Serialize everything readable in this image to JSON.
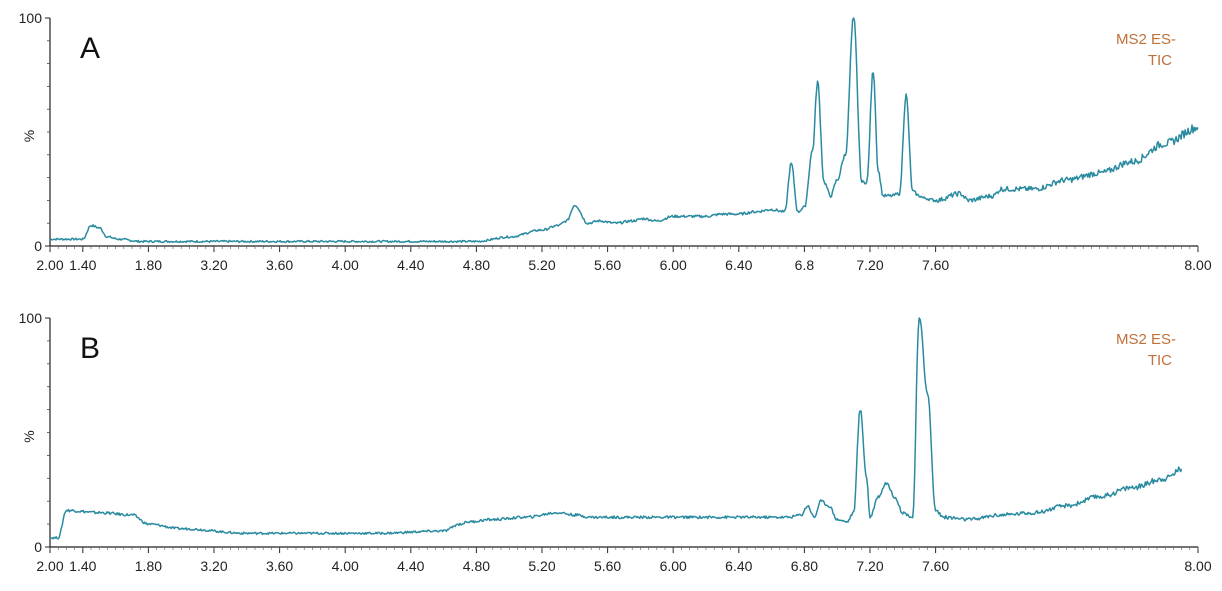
{
  "chart_data": [
    {
      "type": "line",
      "panel_label": "A",
      "annotation": [
        "MS2 ES-",
        "TIC"
      ],
      "ylabel": "%",
      "y_ticks": [
        "0",
        "100"
      ],
      "ylim": [
        0,
        100
      ],
      "x_tick_labels": [
        "2.00",
        "1.40",
        "1.80",
        "3.20",
        "3.60",
        "4.00",
        "4.40",
        "4.80",
        "5.20",
        "5.60",
        "6.00",
        "6.40",
        "6.8",
        "7.20",
        "7.60",
        "8.00"
      ],
      "xlim": [
        1.0,
        8.0
      ],
      "x_step": 0.4,
      "grid": false,
      "line_color": "#2a8ba0",
      "annotation_color": "#c0703a",
      "series": [
        {
          "x": [
            1.0,
            1.2,
            1.25,
            1.3,
            1.35,
            1.42,
            1.55,
            1.8,
            2.5,
            3.2,
            3.6,
            3.8,
            4.0,
            4.1,
            4.15,
            4.2,
            4.28,
            4.35,
            4.45,
            4.55,
            4.62,
            4.7,
            4.8,
            4.9,
            5.0,
            5.1,
            5.2,
            5.3,
            5.4,
            5.48,
            5.52,
            5.56,
            5.6,
            5.65,
            5.68,
            5.72,
            5.76,
            5.8,
            5.85,
            5.9,
            5.95,
            5.98,
            6.02,
            6.05,
            6.08,
            6.13,
            6.18,
            6.22,
            6.26,
            6.3,
            6.33,
            6.4,
            6.55,
            6.6,
            6.75,
            6.8,
            7.0,
            7.2,
            7.4,
            7.6,
            7.8,
            8.0
          ],
          "y": [
            3,
            3,
            9,
            8,
            4,
            3,
            2,
            2,
            2,
            2,
            2,
            4,
            7,
            9,
            11,
            18,
            10,
            11,
            10,
            11,
            12,
            11,
            13,
            13,
            13,
            14,
            14,
            15,
            16,
            15,
            36,
            15,
            17,
            42,
            72,
            28,
            22,
            29,
            40,
            100,
            28,
            28,
            77,
            33,
            22,
            22,
            23,
            66,
            24,
            22,
            21,
            20,
            23,
            20,
            22,
            25,
            25,
            29,
            32,
            37,
            45,
            52
          ]
        }
      ]
    },
    {
      "type": "line",
      "panel_label": "B",
      "annotation": [
        "MS2 ES-",
        "TIC"
      ],
      "ylabel": "%",
      "y_ticks": [
        "0",
        "100"
      ],
      "ylim": [
        0,
        100
      ],
      "x_tick_labels": [
        "2.00",
        "1.40",
        "1.80",
        "3.20",
        "3.60",
        "4.00",
        "4.40",
        "4.80",
        "5.20",
        "5.60",
        "6.00",
        "6.40",
        "6.80",
        "7.20",
        "7.60",
        "8.00"
      ],
      "xlim": [
        1.0,
        8.0
      ],
      "x_step": 0.4,
      "grid": false,
      "line_color": "#2a8ba0",
      "annotation_color": "#c0703a",
      "series": [
        {
          "x": [
            1.0,
            1.05,
            1.1,
            1.3,
            1.5,
            1.6,
            1.8,
            2.2,
            2.6,
            3.0,
            3.4,
            3.5,
            3.55,
            3.7,
            3.9,
            4.1,
            4.2,
            4.3,
            4.5,
            4.8,
            5.1,
            5.3,
            5.5,
            5.58,
            5.62,
            5.66,
            5.7,
            5.75,
            5.8,
            5.86,
            5.9,
            5.94,
            5.98,
            6.0,
            6.05,
            6.1,
            6.15,
            6.2,
            6.26,
            6.3,
            6.35,
            6.4,
            6.45,
            6.6,
            6.8,
            7.0,
            7.2,
            7.4,
            7.6,
            7.8,
            7.9
          ],
          "y": [
            4,
            4,
            16,
            15,
            14,
            10,
            8,
            6,
            6,
            6,
            7,
            10,
            11,
            12,
            13,
            15,
            14,
            13,
            13,
            13,
            13,
            13,
            13,
            14,
            18,
            13,
            20,
            18,
            12,
            11,
            15,
            60,
            30,
            13,
            22,
            28,
            22,
            15,
            13,
            100,
            68,
            16,
            13,
            12,
            14,
            15,
            18,
            22,
            26,
            30,
            34
          ]
        }
      ]
    }
  ]
}
